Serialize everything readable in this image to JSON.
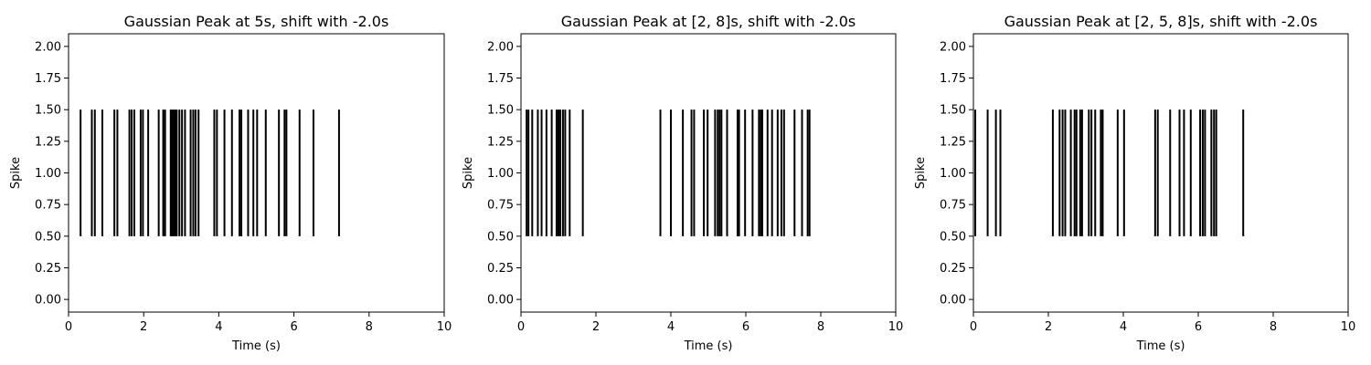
{
  "colors": {
    "spike": "#000000",
    "axes": "#000000",
    "background": "#ffffff"
  },
  "chart_data": [
    {
      "type": "eventplot",
      "title": "Gaussian Peak at 5s, shift with -2.0s",
      "xlabel": "Time (s)",
      "ylabel": "Spike",
      "xlim": [
        0,
        10
      ],
      "ylim": [
        -0.1,
        2.1
      ],
      "xticks": [
        0,
        2,
        4,
        6,
        8,
        10
      ],
      "xtick_labels": [
        "0",
        "2",
        "4",
        "6",
        "8",
        "10"
      ],
      "yticks": [
        0.0,
        0.25,
        0.5,
        0.75,
        1.0,
        1.25,
        1.5,
        1.75,
        2.0
      ],
      "ytick_labels": [
        "0.00",
        "0.25",
        "0.50",
        "0.75",
        "1.00",
        "1.25",
        "1.50",
        "1.75",
        "2.00"
      ],
      "line_range": [
        0.5,
        1.5
      ],
      "grid": false,
      "events": [
        0.32,
        0.62,
        0.7,
        0.9,
        1.22,
        1.3,
        1.62,
        1.68,
        1.75,
        1.92,
        1.98,
        2.12,
        2.4,
        2.52,
        2.57,
        2.72,
        2.76,
        2.8,
        2.84,
        2.88,
        2.95,
        3.02,
        3.1,
        3.25,
        3.32,
        3.38,
        3.46,
        3.88,
        3.95,
        4.15,
        4.35,
        4.55,
        4.6,
        4.78,
        4.92,
        5.02,
        5.25,
        5.6,
        5.75,
        5.8,
        6.15,
        6.52,
        7.2
      ]
    },
    {
      "type": "eventplot",
      "title": "Gaussian Peak at [2, 8]s, shift with -2.0s",
      "xlabel": "Time (s)",
      "ylabel": "Spike",
      "xlim": [
        0,
        10
      ],
      "ylim": [
        -0.1,
        2.1
      ],
      "xticks": [
        0,
        2,
        4,
        6,
        8,
        10
      ],
      "xtick_labels": [
        "0",
        "2",
        "4",
        "6",
        "8",
        "10"
      ],
      "yticks": [
        0.0,
        0.25,
        0.5,
        0.75,
        1.0,
        1.25,
        1.5,
        1.75,
        2.0
      ],
      "ytick_labels": [
        "0.00",
        "0.25",
        "0.50",
        "0.75",
        "1.00",
        "1.25",
        "1.50",
        "1.75",
        "2.00"
      ],
      "line_range": [
        0.5,
        1.5
      ],
      "grid": false,
      "events": [
        0.15,
        0.2,
        0.3,
        0.45,
        0.55,
        0.68,
        0.82,
        0.95,
        1.0,
        1.05,
        1.12,
        1.18,
        1.3,
        1.65,
        3.72,
        4.0,
        4.32,
        4.55,
        4.62,
        4.88,
        4.98,
        5.18,
        5.25,
        5.3,
        5.35,
        5.5,
        5.78,
        5.82,
        5.98,
        6.18,
        6.35,
        6.4,
        6.44,
        6.58,
        6.7,
        6.85,
        6.95,
        7.02,
        7.3,
        7.5,
        7.65,
        7.7
      ]
    },
    {
      "type": "eventplot",
      "title": "Gaussian Peak at [2, 5, 8]s, shift with -2.0s",
      "xlabel": "Time (s)",
      "ylabel": "Spike",
      "xlim": [
        0,
        10
      ],
      "ylim": [
        -0.1,
        2.1
      ],
      "xticks": [
        0,
        2,
        4,
        6,
        8,
        10
      ],
      "xtick_labels": [
        "0",
        "2",
        "4",
        "6",
        "8",
        "10"
      ],
      "yticks": [
        0.0,
        0.25,
        0.5,
        0.75,
        1.0,
        1.25,
        1.5,
        1.75,
        2.0
      ],
      "ytick_labels": [
        "0.00",
        "0.25",
        "0.50",
        "0.75",
        "1.00",
        "1.25",
        "1.50",
        "1.75",
        "2.00"
      ],
      "line_range": [
        0.5,
        1.5
      ],
      "grid": false,
      "events": [
        0.05,
        0.38,
        0.6,
        0.72,
        2.12,
        2.3,
        2.38,
        2.45,
        2.6,
        2.7,
        2.75,
        2.85,
        2.9,
        3.08,
        3.15,
        3.25,
        3.4,
        3.45,
        3.85,
        4.02,
        4.85,
        4.92,
        5.25,
        5.5,
        5.62,
        5.8,
        6.05,
        6.12,
        6.18,
        6.35,
        6.42,
        6.48,
        7.2
      ]
    }
  ]
}
